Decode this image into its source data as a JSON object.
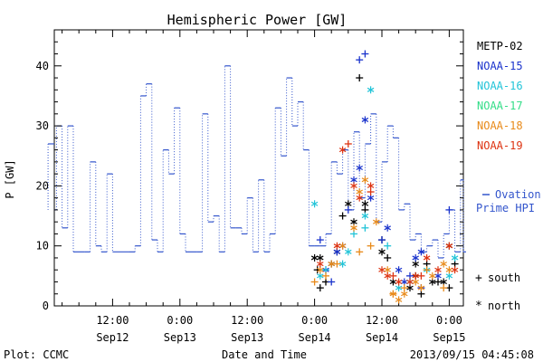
{
  "chart_data": {
    "type": "scatter",
    "title": "Hemispheric Power [GW]",
    "xlabel": "Date and Time",
    "ylabel": "P [GW]",
    "ylim": [
      0,
      46
    ],
    "xlim_hours": [
      0,
      68
    ],
    "yticks": [
      0,
      10,
      20,
      30,
      40
    ],
    "xticks": [
      {
        "hour": 12,
        "label": "12:00",
        "sublabel": "Sep12"
      },
      {
        "hour": 24,
        "label": "0:00",
        "sublabel": "Sep13"
      },
      {
        "hour": 36,
        "label": "12:00",
        "sublabel": "Sep13"
      },
      {
        "hour": 48,
        "label": "0:00",
        "sublabel": "Sep14"
      },
      {
        "hour": 60,
        "label": "12:00",
        "sublabel": "Sep14"
      },
      {
        "hour": 72,
        "label": "0:00",
        "sublabel": "Sep15"
      }
    ],
    "ovation_label_line1": "Ovation",
    "ovation_label_line2": "Prime HPI",
    "ovation_color": "#3355cc",
    "ovation_steps": [
      [
        0.0,
        27
      ],
      [
        0.5,
        16
      ],
      [
        2,
        30
      ],
      [
        3,
        13
      ],
      [
        4,
        30
      ],
      [
        5,
        9
      ],
      [
        7,
        9
      ],
      [
        8,
        24
      ],
      [
        9,
        10
      ],
      [
        10,
        9
      ],
      [
        11,
        22
      ],
      [
        12,
        9
      ],
      [
        15,
        9
      ],
      [
        16,
        10
      ],
      [
        17,
        35
      ],
      [
        18,
        37
      ],
      [
        19,
        11
      ],
      [
        20,
        9
      ],
      [
        21,
        26
      ],
      [
        22,
        22
      ],
      [
        23,
        33
      ],
      [
        24,
        12
      ],
      [
        25,
        9
      ],
      [
        27,
        9
      ],
      [
        28,
        32
      ],
      [
        29,
        14
      ],
      [
        30,
        15
      ],
      [
        31,
        9
      ],
      [
        32,
        40
      ],
      [
        33,
        13
      ],
      [
        34,
        13
      ],
      [
        35,
        12
      ],
      [
        36,
        18
      ],
      [
        37,
        9
      ],
      [
        38,
        21
      ],
      [
        39,
        9
      ],
      [
        40,
        12
      ],
      [
        41,
        33
      ],
      [
        42,
        25
      ],
      [
        43,
        38
      ],
      [
        44,
        30
      ],
      [
        45,
        34
      ],
      [
        46,
        26
      ],
      [
        47,
        10
      ],
      [
        48,
        10
      ],
      [
        49,
        10
      ],
      [
        50,
        12
      ],
      [
        51,
        24
      ],
      [
        52,
        22
      ],
      [
        53,
        26
      ],
      [
        54,
        16
      ],
      [
        55,
        29
      ],
      [
        56,
        18
      ],
      [
        57,
        27
      ],
      [
        58,
        32
      ],
      [
        59,
        14
      ],
      [
        60,
        24
      ],
      [
        61,
        30
      ],
      [
        62,
        28
      ],
      [
        63,
        16
      ],
      [
        64,
        17
      ],
      [
        65,
        11
      ],
      [
        66,
        12
      ],
      [
        67,
        9
      ],
      [
        68,
        10
      ],
      [
        69,
        11
      ],
      [
        70,
        8
      ],
      [
        71,
        12
      ],
      [
        72,
        16
      ],
      [
        73,
        9
      ],
      [
        74,
        21
      ],
      [
        75,
        9
      ],
      [
        76,
        11
      ]
    ],
    "legend": [
      {
        "name": "METP-02",
        "color": "#000000"
      },
      {
        "name": "NOAA-15",
        "color": "#1a33cc"
      },
      {
        "name": "NOAA-16",
        "color": "#22c4d8"
      },
      {
        "name": "NOAA-17",
        "color": "#33dd88"
      },
      {
        "name": "NOAA-18",
        "color": "#e88a1a"
      },
      {
        "name": "NOAA-19",
        "color": "#dd3311"
      }
    ],
    "marker_legend": [
      {
        "symbol": "+",
        "label": "south"
      },
      {
        "symbol": "*",
        "label": "north"
      }
    ],
    "series": [
      {
        "name": "METP-02",
        "color": "#000000",
        "south": [
          [
            48.5,
            6
          ],
          [
            49,
            3
          ],
          [
            50,
            4
          ],
          [
            53,
            15
          ],
          [
            56,
            38
          ],
          [
            57,
            16
          ],
          [
            60,
            11
          ],
          [
            61,
            8
          ],
          [
            66,
            5
          ],
          [
            67,
            2
          ],
          [
            68,
            7
          ],
          [
            70,
            4
          ],
          [
            72,
            3
          ],
          [
            73,
            7
          ]
        ],
        "north": [
          [
            48,
            8
          ],
          [
            49,
            8
          ],
          [
            51,
            7
          ],
          [
            52,
            9
          ],
          [
            54,
            17
          ],
          [
            55,
            14
          ],
          [
            57,
            17
          ],
          [
            60,
            9
          ],
          [
            62,
            4
          ],
          [
            65,
            3
          ],
          [
            66,
            7
          ],
          [
            69,
            4
          ],
          [
            71,
            4
          ],
          [
            72,
            10
          ]
        ]
      },
      {
        "name": "NOAA-15",
        "color": "#1a33cc",
        "south": [
          [
            49,
            11
          ],
          [
            51,
            4
          ],
          [
            54,
            16
          ],
          [
            56,
            41
          ],
          [
            57,
            42
          ],
          [
            60,
            11
          ],
          [
            65,
            5
          ],
          [
            67,
            3
          ],
          [
            72,
            16
          ]
        ],
        "north": [
          [
            50,
            6
          ],
          [
            52,
            9
          ],
          [
            53,
            10
          ],
          [
            55,
            21
          ],
          [
            56,
            23
          ],
          [
            57,
            31
          ],
          [
            58,
            18
          ],
          [
            61,
            13
          ],
          [
            63,
            6
          ],
          [
            64,
            4
          ],
          [
            66,
            8
          ],
          [
            67,
            9
          ],
          [
            70,
            5
          ]
        ]
      },
      {
        "name": "NOAA-16",
        "color": "#22c4d8",
        "south": [
          [
            50,
            6
          ],
          [
            55,
            12
          ],
          [
            57,
            13
          ],
          [
            61,
            10
          ]
        ],
        "north": [
          [
            48,
            17
          ],
          [
            49,
            5
          ],
          [
            53,
            7
          ],
          [
            54,
            9
          ],
          [
            57,
            15
          ],
          [
            58,
            36
          ],
          [
            63,
            3
          ],
          [
            65,
            4
          ],
          [
            68,
            6
          ],
          [
            72,
            5
          ],
          [
            73,
            8
          ]
        ]
      },
      {
        "name": "NOAA-17",
        "color": "#33dd88",
        "south": [],
        "north": []
      },
      {
        "name": "NOAA-18",
        "color": "#e88a1a",
        "south": [
          [
            48,
            4
          ],
          [
            50,
            5
          ],
          [
            52,
            7
          ],
          [
            56,
            9
          ],
          [
            58,
            10
          ],
          [
            62,
            2
          ],
          [
            64,
            3
          ],
          [
            68,
            6
          ],
          [
            71,
            3
          ]
        ],
        "north": [
          [
            49,
            6
          ],
          [
            51,
            7
          ],
          [
            53,
            10
          ],
          [
            55,
            13
          ],
          [
            56,
            19
          ],
          [
            57,
            21
          ],
          [
            59,
            14
          ],
          [
            61,
            6
          ],
          [
            62,
            2
          ],
          [
            63,
            1
          ],
          [
            64,
            2
          ],
          [
            66,
            4
          ],
          [
            67,
            3
          ],
          [
            69,
            5
          ],
          [
            71,
            7
          ],
          [
            72,
            6
          ]
        ]
      },
      {
        "name": "NOAA-19",
        "color": "#dd3311",
        "south": [
          [
            54,
            27
          ],
          [
            58,
            19
          ],
          [
            62,
            5
          ],
          [
            67,
            5
          ]
        ],
        "north": [
          [
            49,
            7
          ],
          [
            52,
            10
          ],
          [
            53,
            26
          ],
          [
            55,
            20
          ],
          [
            56,
            18
          ],
          [
            58,
            20
          ],
          [
            60,
            6
          ],
          [
            61,
            5
          ],
          [
            63,
            4
          ],
          [
            65,
            4
          ],
          [
            66,
            5
          ],
          [
            68,
            8
          ],
          [
            70,
            6
          ],
          [
            72,
            10
          ],
          [
            73,
            6
          ]
        ]
      }
    ]
  },
  "footer": {
    "plot_source": "Plot: CCMC",
    "timestamp": "2013/09/15 04:45:08"
  }
}
